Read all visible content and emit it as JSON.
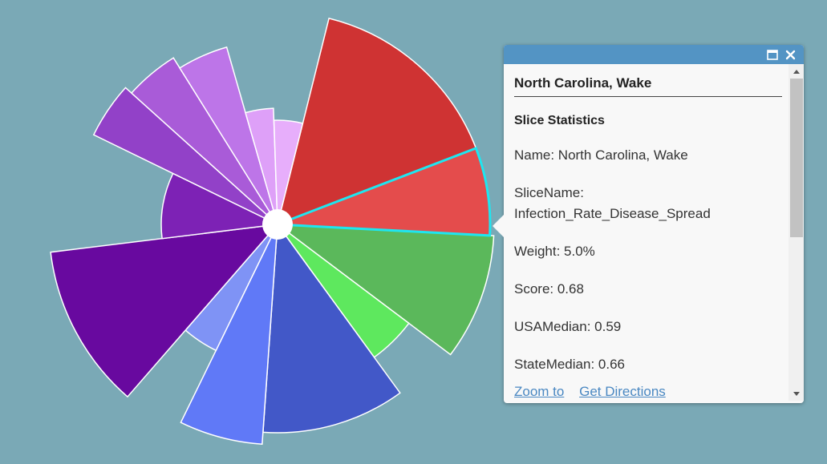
{
  "map": {
    "background": "#7aa9b6",
    "chart": {
      "center_fill": "#ffffff",
      "stroke": "#ffffff",
      "highlight_color": "#1ee6f0",
      "slices": [
        {
          "name": "red-large",
          "color": "#cf3333",
          "a0": -76,
          "a1": -21,
          "r": 265,
          "selected": false
        },
        {
          "name": "red-selected",
          "color": "#e44c4c",
          "a0": -21,
          "a1": 3,
          "r": 265,
          "selected": true
        },
        {
          "name": "green-dark",
          "color": "#5bb85b",
          "a0": 3,
          "a1": 37,
          "r": 270,
          "selected": false
        },
        {
          "name": "green-light",
          "color": "#5ee85e",
          "a0": 37,
          "a1": 54,
          "r": 205,
          "selected": false
        },
        {
          "name": "blue-dark",
          "color": "#4258c8",
          "a0": 54,
          "a1": 94,
          "r": 260,
          "selected": false
        },
        {
          "name": "blue-light",
          "color": "#6079f7",
          "a0": 94,
          "a1": 116,
          "r": 275,
          "selected": false
        },
        {
          "name": "blue-pale",
          "color": "#7f93f5",
          "a0": 116,
          "a1": 131,
          "r": 175,
          "selected": false
        },
        {
          "name": "purple-darkest",
          "color": "#68099f",
          "a0": 131,
          "a1": 173,
          "r": 285,
          "selected": false
        },
        {
          "name": "purple-dark",
          "color": "#7d22b5",
          "a0": 173,
          "a1": 206,
          "r": 145,
          "selected": false
        },
        {
          "name": "purple-medium",
          "color": "#9241c8",
          "a0": 206,
          "a1": 222,
          "r": 255,
          "selected": false
        },
        {
          "name": "purple-light",
          "color": "#a95bd8",
          "a0": 222,
          "a1": 238,
          "r": 245,
          "selected": false
        },
        {
          "name": "lavender",
          "color": "#bd75e8",
          "a0": 238,
          "a1": 254,
          "r": 230,
          "selected": false
        },
        {
          "name": "lavender-pale",
          "color": "#dea0f8",
          "a0": 254,
          "a1": 268,
          "r": 145,
          "selected": false
        },
        {
          "name": "lavender-palest",
          "color": "#e7aefb",
          "a0": 268,
          "a1": 284,
          "r": 130,
          "selected": false
        }
      ]
    }
  },
  "popup": {
    "title": "North Carolina, Wake",
    "section_title": "Slice Statistics",
    "fields": [
      "Name: North Carolina, Wake",
      "SliceName: Infection_Rate_Disease_Spread",
      "Weight: 5.0%",
      "Score: 0.68",
      "USAMedian: 0.59",
      "StateMedian: 0.66"
    ],
    "actions": {
      "zoom_to": "Zoom to",
      "get_directions": "Get Directions"
    },
    "icons": {
      "maximize": "maximize-icon",
      "close": "close-icon",
      "scroll_up": "chevron-up-icon",
      "scroll_down": "chevron-down-icon"
    }
  }
}
